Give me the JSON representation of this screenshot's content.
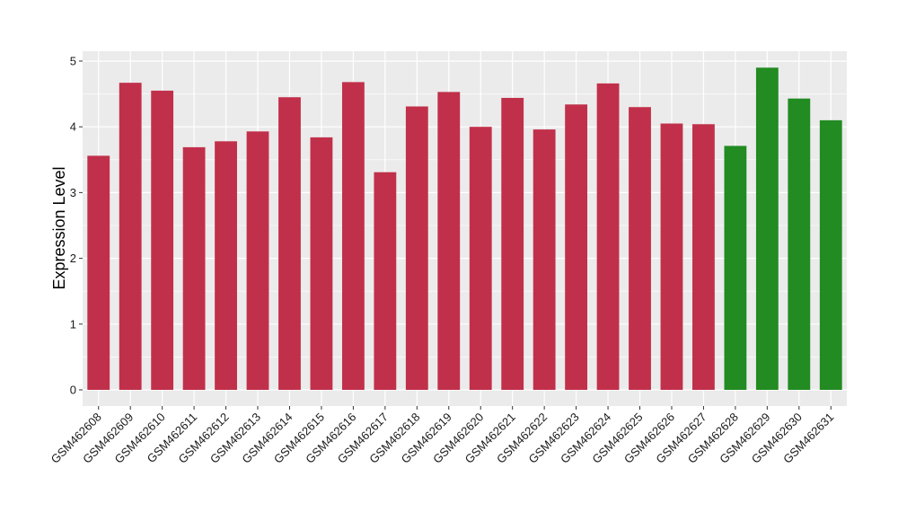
{
  "chart_data": {
    "type": "bar",
    "title": "",
    "xlabel": "",
    "ylabel": "Expression Level",
    "ylim": [
      0,
      5.15
    ],
    "yticks": [
      0,
      1,
      2,
      3,
      4,
      5
    ],
    "grid": true,
    "legend": "none",
    "panel_background": "#ebebeb",
    "gridline_color": "#ffffff",
    "categories": [
      "GSM462608",
      "GSM462609",
      "GSM462610",
      "GSM462611",
      "GSM462612",
      "GSM462613",
      "GSM462614",
      "GSM462615",
      "GSM462616",
      "GSM462617",
      "GSM462618",
      "GSM462619",
      "GSM462620",
      "GSM462621",
      "GSM462622",
      "GSM462623",
      "GSM462624",
      "GSM462625",
      "GSM462626",
      "GSM462627",
      "GSM462628",
      "GSM462629",
      "GSM462630",
      "GSM462631"
    ],
    "values": [
      3.56,
      4.67,
      4.55,
      3.69,
      3.78,
      3.93,
      4.45,
      3.84,
      4.68,
      3.31,
      4.31,
      4.53,
      4.0,
      4.44,
      3.96,
      4.34,
      4.66,
      4.3,
      4.05,
      4.04,
      3.71,
      4.9,
      4.43,
      4.1
    ],
    "bar_colors": [
      "#c1304a",
      "#c1304a",
      "#c1304a",
      "#c1304a",
      "#c1304a",
      "#c1304a",
      "#c1304a",
      "#c1304a",
      "#c1304a",
      "#c1304a",
      "#c1304a",
      "#c1304a",
      "#c1304a",
      "#c1304a",
      "#c1304a",
      "#c1304a",
      "#c1304a",
      "#c1304a",
      "#c1304a",
      "#c1304a",
      "#228b22",
      "#228b22",
      "#228b22",
      "#228b22"
    ]
  }
}
